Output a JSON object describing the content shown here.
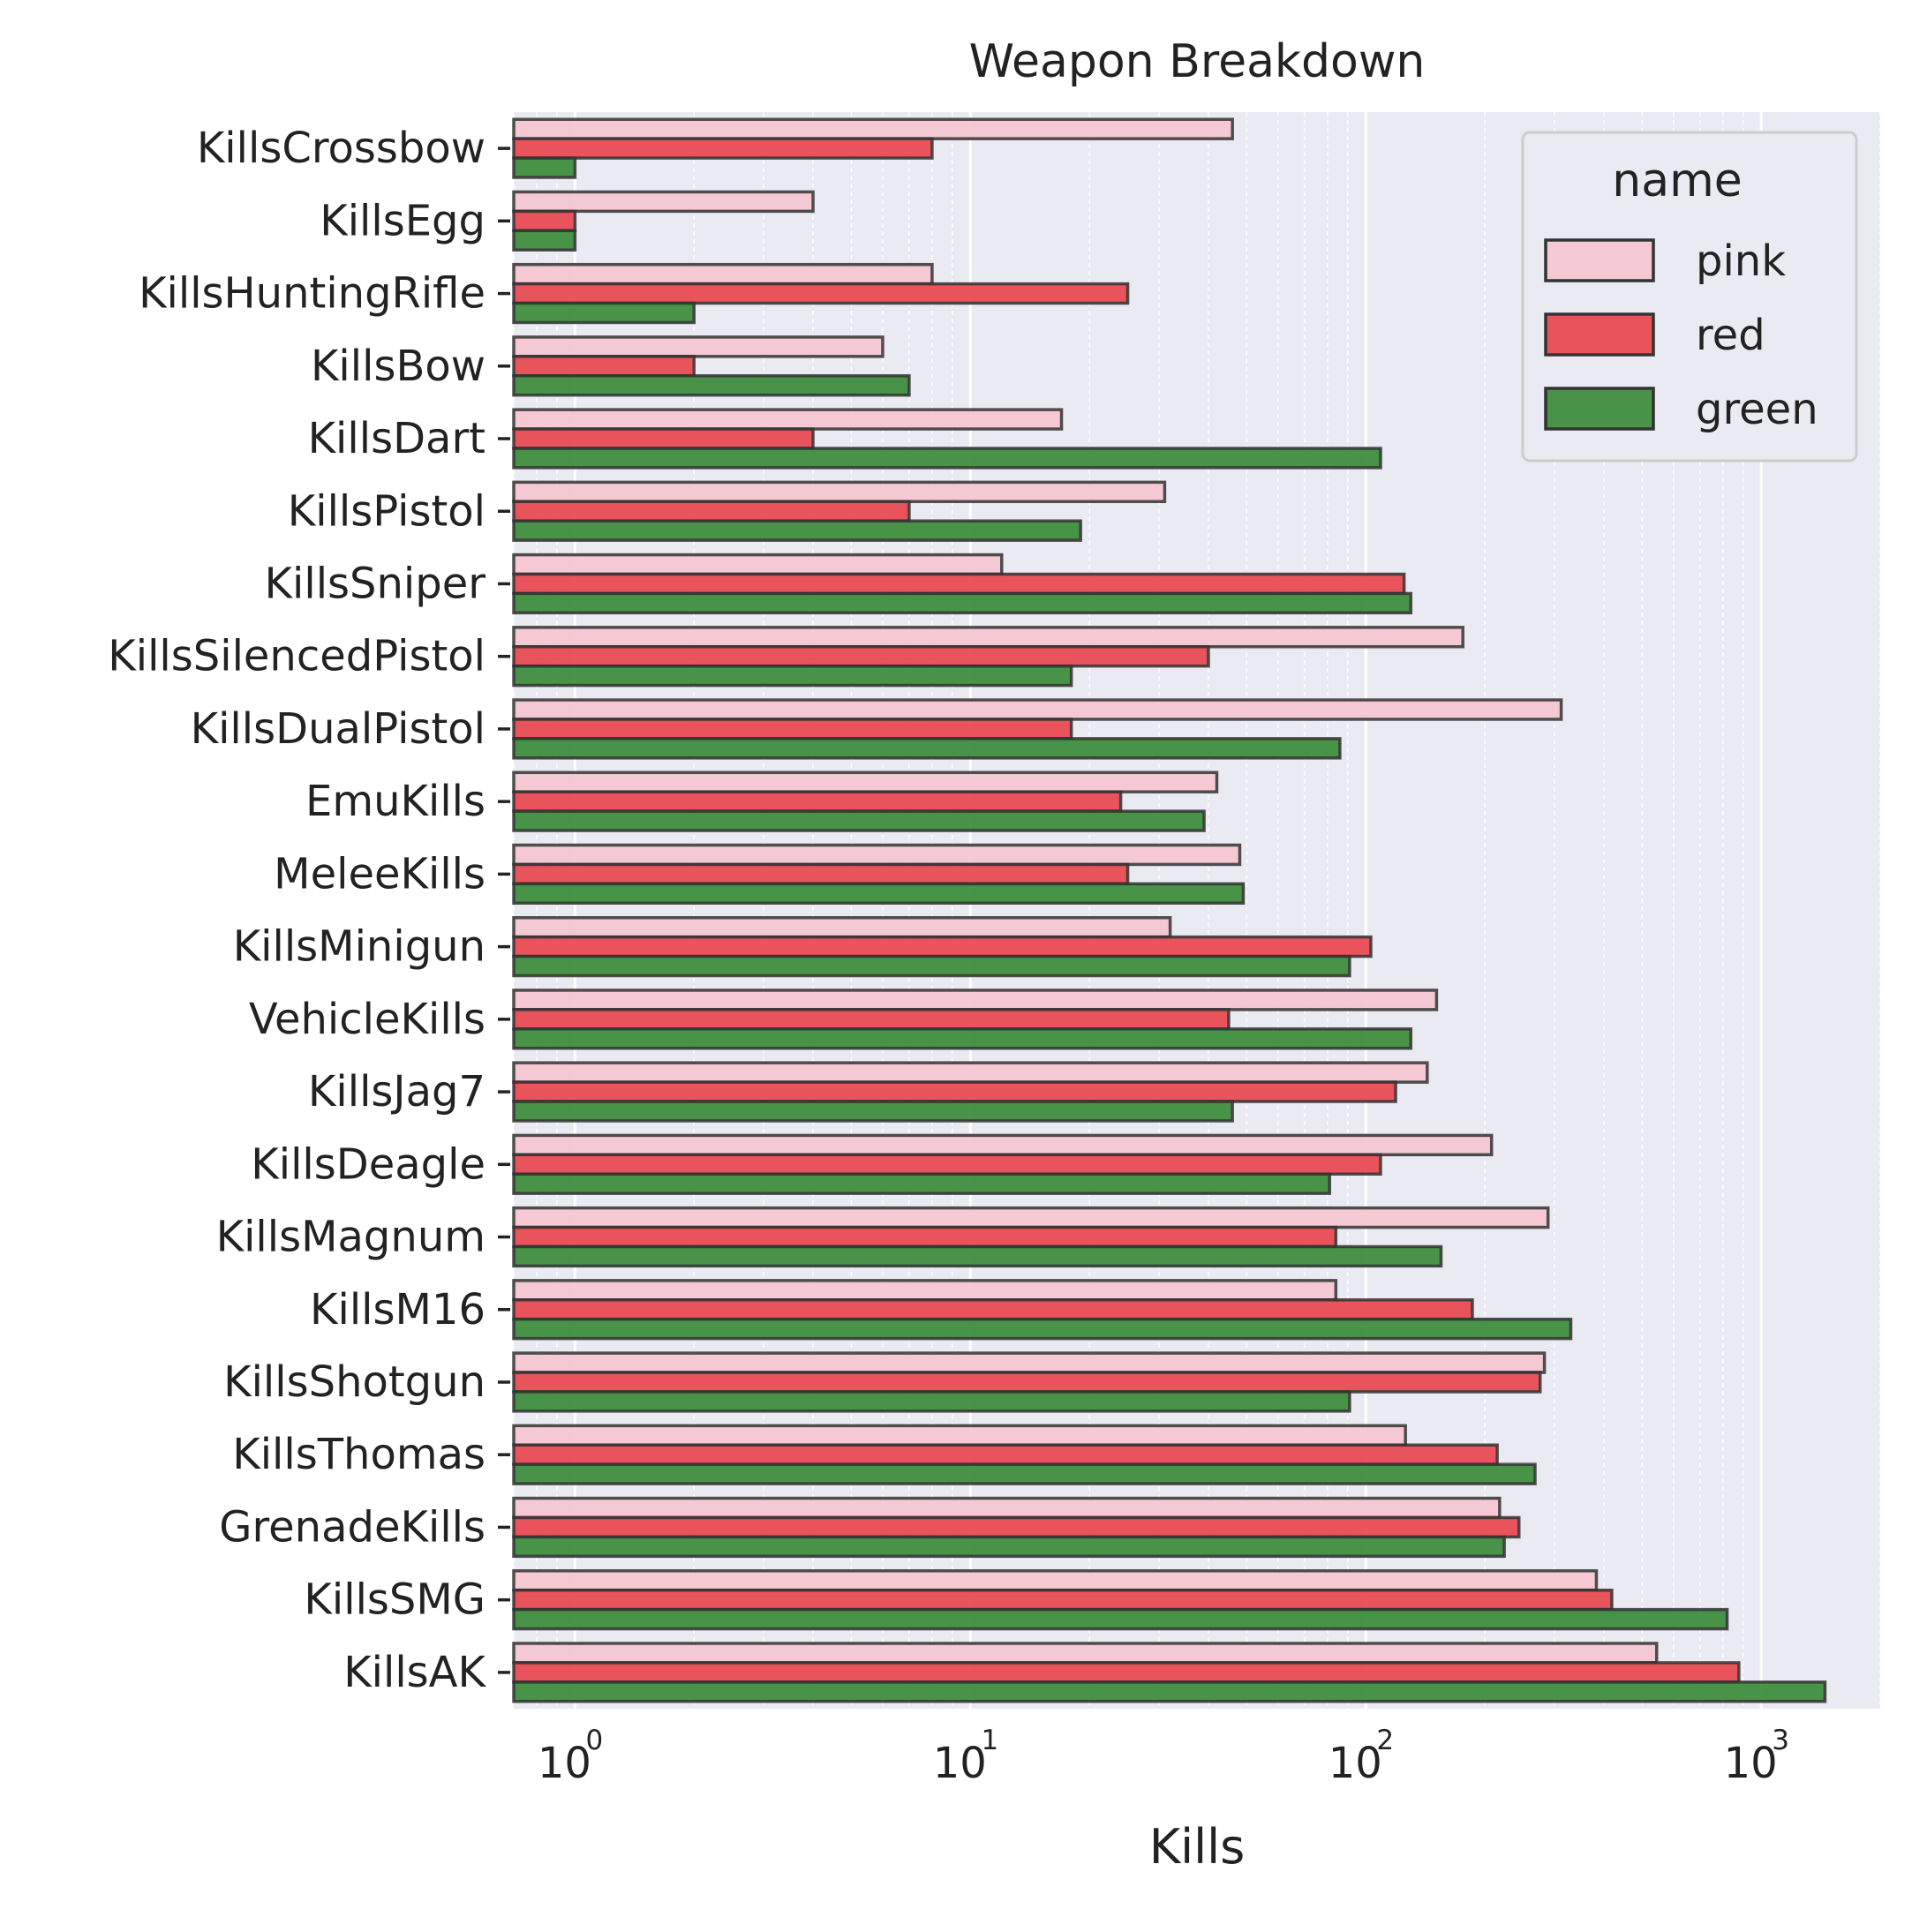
{
  "chart_data": {
    "type": "bar",
    "orientation": "horizontal",
    "title": "Weapon Breakdown",
    "xlabel": "Kills",
    "ylabel": "",
    "xscale": "log",
    "xlim": [
      0.7,
      2000
    ],
    "grid": true,
    "legend": {
      "title": "name",
      "placement": "top-right"
    },
    "x_ticks": [
      {
        "value": 1,
        "base": "10",
        "exp": "0"
      },
      {
        "value": 10,
        "base": "10",
        "exp": "1"
      },
      {
        "value": 100,
        "base": "10",
        "exp": "2"
      },
      {
        "value": 1000,
        "base": "10",
        "exp": "3"
      }
    ],
    "categories": [
      "KillsCrossbow",
      "KillsEgg",
      "KillsHuntingRifle",
      "KillsBow",
      "KillsDart",
      "KillsPistol",
      "KillsSniper",
      "KillsSilencedPistol",
      "KillsDualPistol",
      "EmuKills",
      "MeleeKills",
      "KillsMinigun",
      "VehicleKills",
      "KillsJag7",
      "KillsDeagle",
      "KillsMagnum",
      "KillsM16",
      "KillsShotgun",
      "KillsThomas",
      "GrenadeKills",
      "KillsSMG",
      "KillsAK"
    ],
    "series": [
      {
        "name": "pink",
        "color": "#f4c6d0",
        "values": [
          46,
          4,
          8,
          6,
          17,
          31,
          12,
          176,
          312,
          42,
          48,
          32,
          151,
          143,
          208,
          289,
          84,
          283,
          126,
          218,
          383,
          544
        ]
      },
      {
        "name": "red",
        "color": "#e8474f",
        "values": [
          8,
          1,
          25,
          2,
          4,
          7,
          125,
          40,
          18,
          24,
          25,
          103,
          45,
          119,
          109,
          84,
          186,
          276,
          215,
          244,
          419,
          878
        ]
      },
      {
        "name": "green",
        "color": "#3a8b3a",
        "values": [
          1,
          1,
          2,
          7,
          109,
          19,
          130,
          18,
          86,
          39,
          49,
          91,
          130,
          46,
          81,
          155,
          330,
          91,
          268,
          224,
          820,
          1450
        ]
      }
    ]
  }
}
